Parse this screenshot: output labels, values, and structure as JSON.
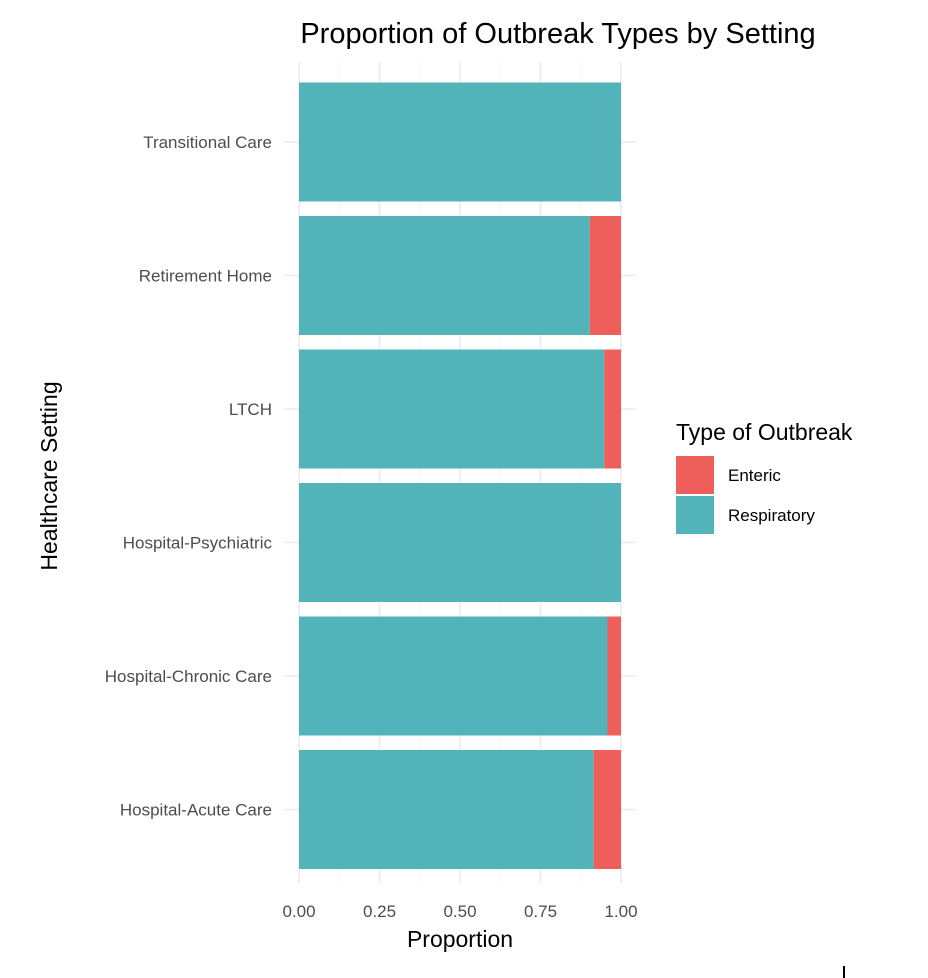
{
  "chart_data": {
    "type": "bar",
    "orientation": "horizontal",
    "stacked": true,
    "title": "Proportion of Outbreak Types by Setting",
    "xlabel": "Proportion",
    "ylabel": "Healthcare Setting",
    "xlim": [
      0,
      1
    ],
    "xticks": [
      "0.00",
      "0.25",
      "0.50",
      "0.75",
      "1.00"
    ],
    "xtick_values": [
      0,
      0.25,
      0.5,
      0.75,
      1.0
    ],
    "grid": true,
    "categories": [
      "Hospital-Acute Care",
      "Hospital-Chronic Care",
      "Hospital-Psychiatric",
      "LTCH",
      "Retirement Home",
      "Transitional Care"
    ],
    "series": [
      {
        "name": "Respiratory",
        "color": "#52B3BA",
        "values": [
          0.915,
          0.958,
          1.0,
          0.948,
          0.903,
          1.0
        ]
      },
      {
        "name": "Enteric",
        "color": "#EE5F5B",
        "values": [
          0.085,
          0.042,
          0.0,
          0.052,
          0.097,
          0.0
        ]
      }
    ],
    "legend": {
      "title": "Type of Outbreak",
      "position": "right",
      "entries": [
        {
          "label": "Enteric",
          "color": "#EE5F5B"
        },
        {
          "label": "Respiratory",
          "color": "#52B3BA"
        }
      ]
    }
  }
}
